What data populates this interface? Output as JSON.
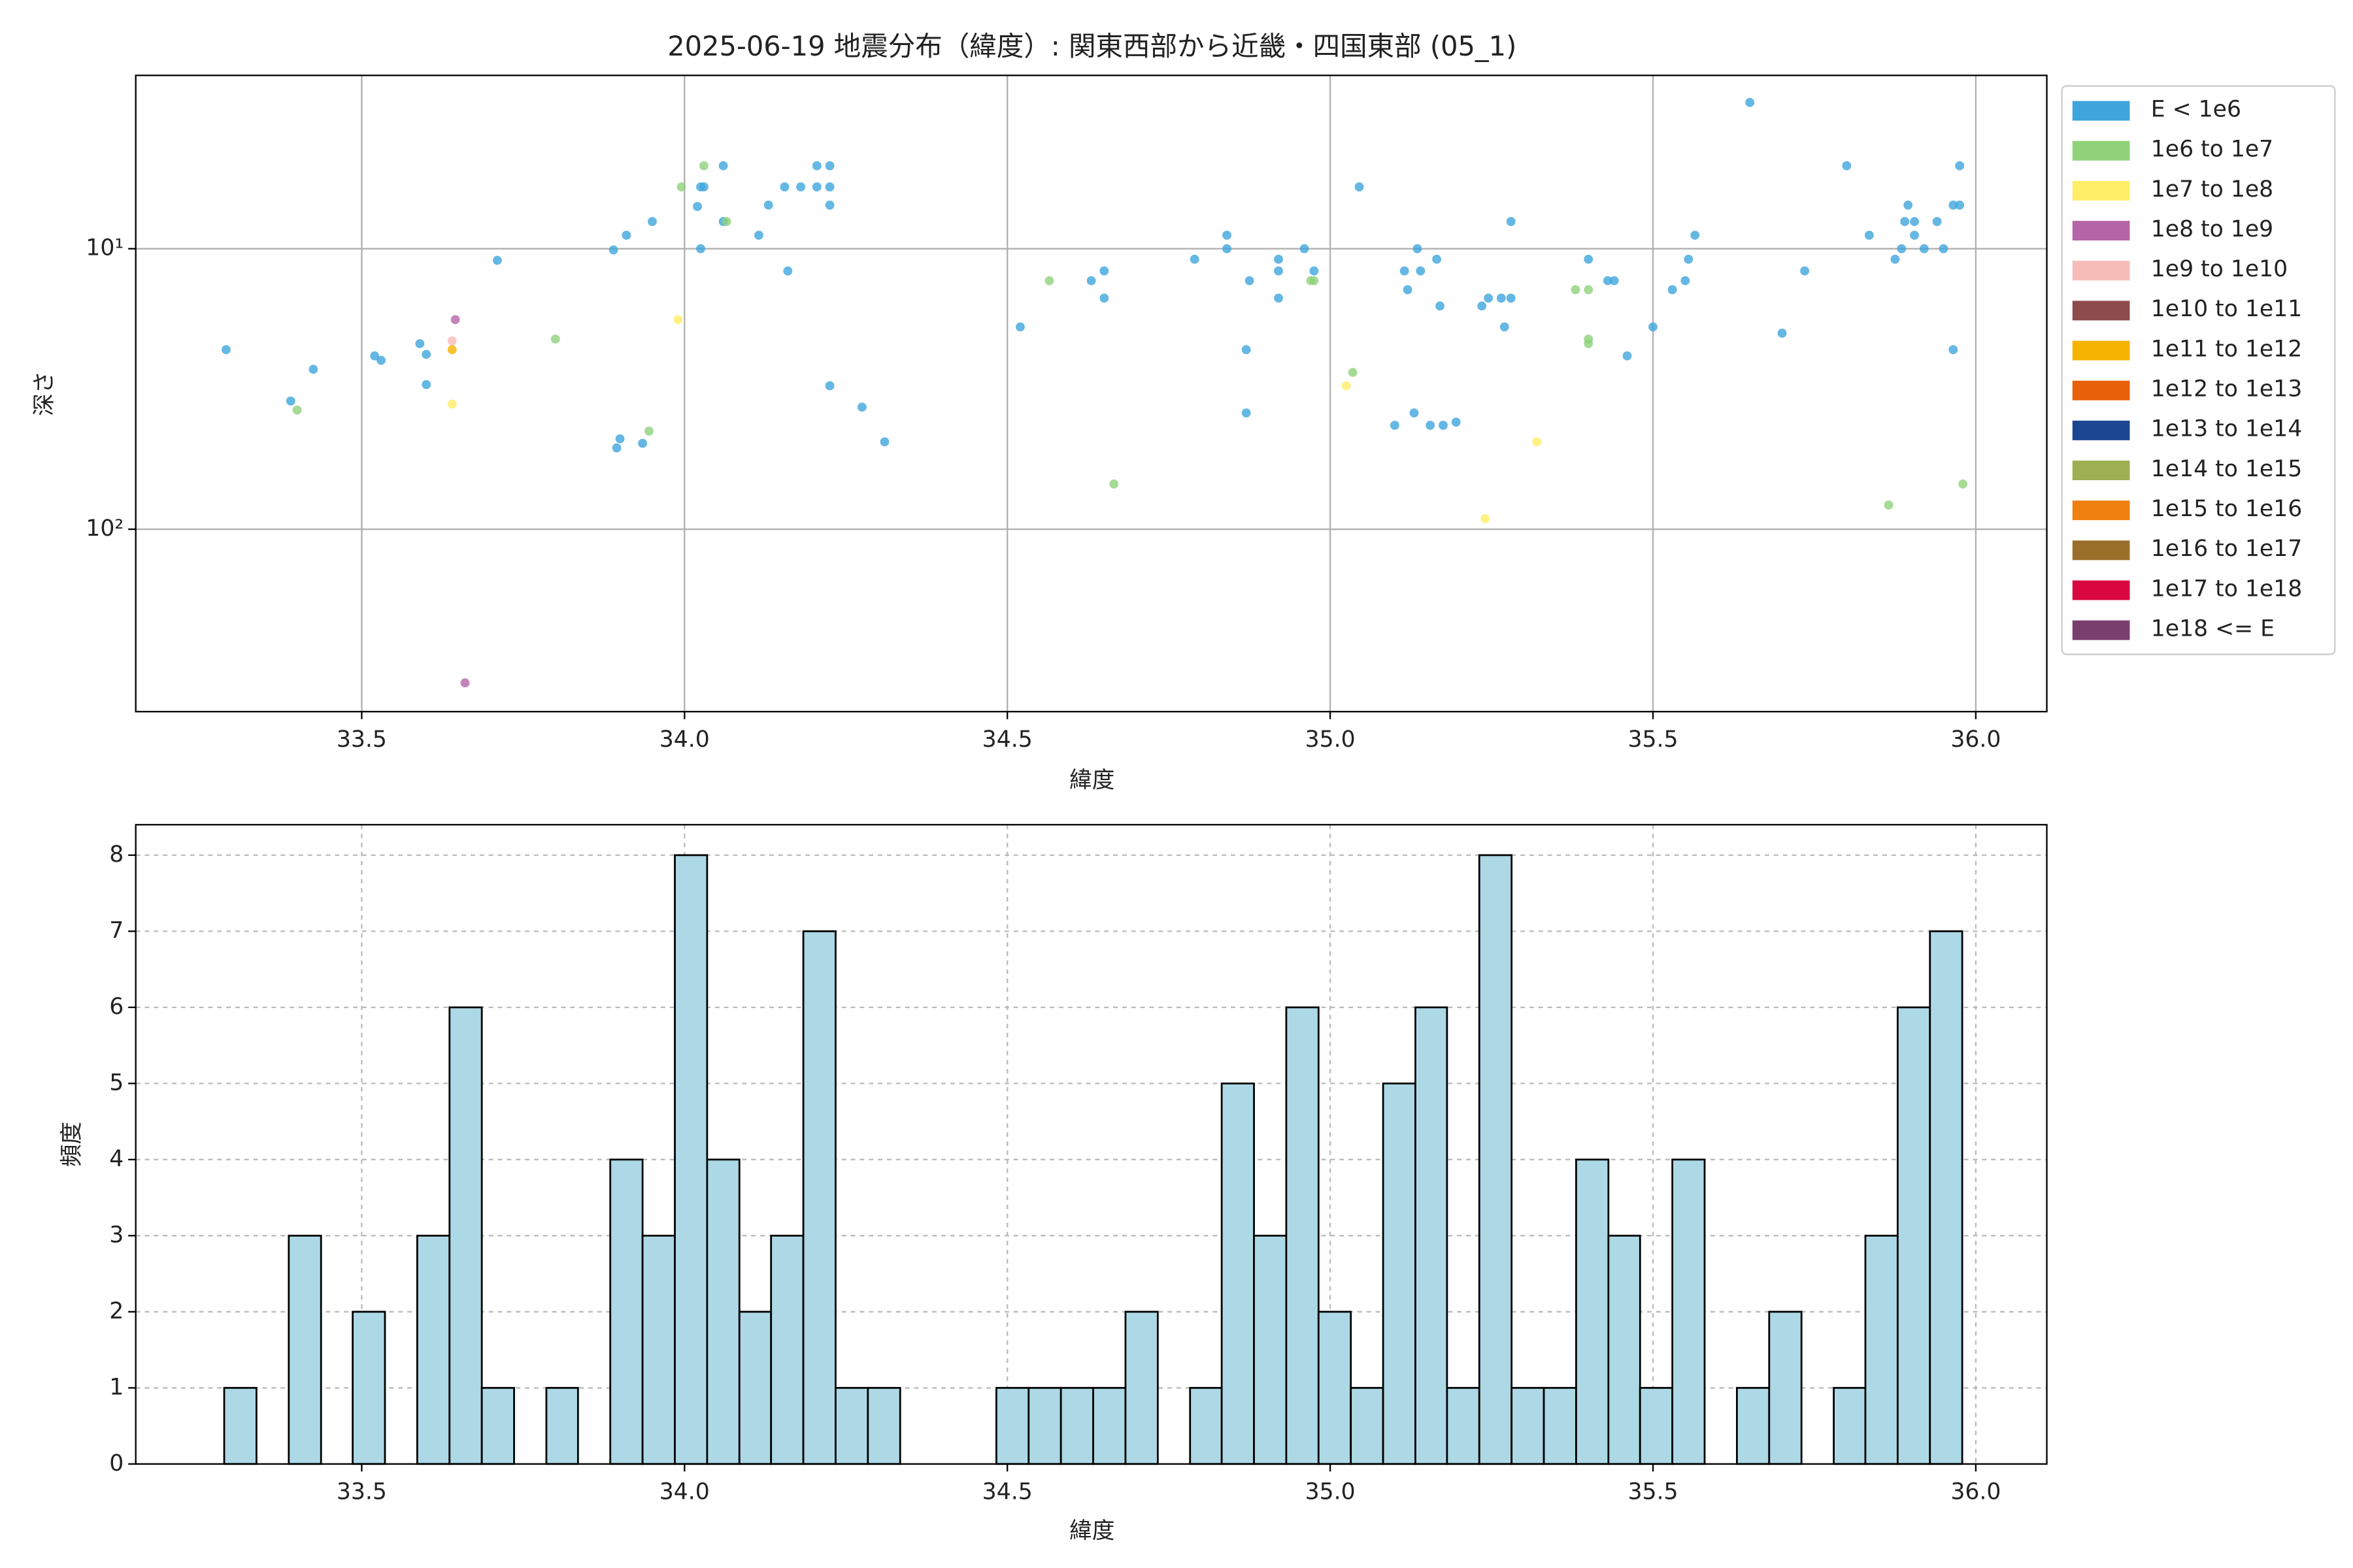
{
  "chart_data": [
    {
      "type": "scatter",
      "title": "2025-06-19 地震分布（緯度）: 関東西部から近畿・四国東部 (05_1)",
      "x_label": "緯度",
      "y_label": "深さ",
      "log_y": true,
      "invert_y": true,
      "grid": true,
      "legend": "outside right",
      "xlim": [
        33.15,
        36.11
      ],
      "xticks": [
        33.5,
        {
          "value": 34,
          "label": "34.0"
        },
        34.5,
        {
          "value": 35,
          "label": "35.0"
        },
        35.5,
        {
          "value": 36,
          "label": "36.0"
        }
      ],
      "ylim": [
        2.41,
        447
      ],
      "yticks": [
        {
          "value": 10,
          "label": "10¹"
        },
        {
          "value": 100,
          "label": "10²"
        }
      ],
      "series": [
        {
          "name": "E < 1e6",
          "color": "#3fa5dd",
          "x": [
            33.29,
            33.39,
            33.425,
            33.52,
            33.53,
            33.59,
            33.6,
            33.6,
            33.71,
            33.89,
            33.91,
            33.95,
            33.895,
            33.9,
            33.935,
            34.025,
            34.02,
            34.025,
            34.03,
            34.06,
            34.06,
            34.115,
            34.13,
            34.155,
            34.18,
            34.205,
            34.205,
            34.225,
            34.225,
            34.225,
            34.16,
            34.225,
            34.275,
            34.31,
            34.52,
            34.63,
            34.65,
            34.65,
            34.79,
            34.84,
            34.84,
            34.875,
            34.87,
            34.87,
            34.92,
            34.92,
            34.92,
            34.96,
            34.975,
            35.045,
            35.1,
            35.115,
            35.12,
            35.13,
            35.14,
            35.135,
            35.155,
            35.165,
            35.17,
            35.175,
            35.195,
            35.235,
            35.245,
            35.265,
            35.27,
            35.28,
            35.28,
            35.4,
            35.43,
            35.44,
            35.46,
            35.5,
            35.53,
            35.55,
            35.555,
            35.565,
            35.65,
            35.7,
            35.735,
            35.8,
            35.835,
            35.875,
            35.885,
            35.89,
            35.895,
            35.905,
            35.905,
            35.92,
            35.94,
            35.95,
            35.965,
            35.975,
            35.975,
            35.965
          ],
          "y": [
            22.9,
            34.9,
            26.9,
            24.1,
            25.0,
            21.8,
            30.5,
            23.8,
            11.0,
            10.1,
            8.95,
            8.0,
            51.3,
            47.6,
            49.4,
            6.02,
            7.07,
            10,
            6.02,
            5.06,
            8.0,
            8.95,
            6.99,
            6.02,
            6.02,
            6.02,
            5.06,
            6.02,
            5.06,
            6.99,
            12.0,
            30.8,
            36.7,
            48.8,
            19.0,
            13.0,
            12.0,
            15.0,
            10.9,
            8.95,
            10,
            13.0,
            22.9,
            38.5,
            10.9,
            15.0,
            12.0,
            10,
            12.0,
            6.02,
            42.6,
            12.0,
            14.0,
            38.5,
            12.0,
            10,
            42.6,
            10.9,
            16.0,
            42.6,
            41.5,
            16.0,
            15.0,
            15.0,
            19.0,
            15.0,
            8.0,
            10.9,
            13.0,
            13.0,
            24.1,
            19.0,
            14.0,
            13.0,
            10.9,
            8.95,
            3.01,
            20.0,
            12.0,
            5.06,
            8.95,
            10.9,
            10,
            8.0,
            6.99,
            8.0,
            8.95,
            10,
            8.0,
            10,
            6.99,
            6.99,
            5.06,
            22.9
          ]
        },
        {
          "name": "1e6 to 1e7",
          "color": "#8fd27a",
          "x": [
            33.4,
            33.8,
            33.995,
            34.03,
            34.065,
            34.565,
            34.665,
            34.97,
            34.975,
            35.035,
            35.38,
            35.4,
            35.4,
            35.4,
            35.865,
            35.98,
            33.945
          ],
          "y": [
            37.6,
            21.0,
            6.02,
            5.06,
            8.0,
            13.0,
            69.0,
            13.0,
            13.0,
            27.6,
            14.0,
            14.0,
            21.8,
            21.0,
            82.0,
            69.0,
            44.7
          ]
        },
        {
          "name": "1e7 to 1e8",
          "color": "#ffee66",
          "x": [
            33.99,
            33.64,
            35.025,
            35.24,
            35.32
          ],
          "y": [
            17.9,
            35.8,
            30.8,
            91.7,
            48.8
          ]
        },
        {
          "name": "1e8 to 1e9",
          "color": "#b565a7",
          "x": [
            33.645,
            33.66
          ],
          "y": [
            17.9,
            353
          ]
        },
        {
          "name": "1e9 to 1e10",
          "color": "#f5bcb8",
          "x": [
            33.64
          ],
          "y": [
            21.3
          ]
        },
        {
          "name": "1e10 to 1e11",
          "color": "#8e4b4b",
          "x": [],
          "y": []
        },
        {
          "name": "1e11 to 1e12",
          "color": "#f6b400",
          "x": [
            33.64
          ],
          "y": [
            22.9
          ]
        },
        {
          "name": "1e12 to 1e13",
          "color": "#e8600a",
          "x": [],
          "y": []
        },
        {
          "name": "1e13 to 1e14",
          "color": "#1c4692",
          "x": [],
          "y": []
        },
        {
          "name": "1e14 to 1e15",
          "color": "#9caf52",
          "x": [],
          "y": []
        },
        {
          "name": "1e15 to 1e16",
          "color": "#f08010",
          "x": [],
          "y": []
        },
        {
          "name": "1e16 to 1e17",
          "color": "#9a6f2a",
          "x": [],
          "y": []
        },
        {
          "name": "1e17 to 1e18",
          "color": "#d9073f",
          "x": [],
          "y": []
        },
        {
          "name": "1e18 <= E",
          "color": "#7a3e6e",
          "x": [],
          "y": []
        }
      ]
    },
    {
      "type": "histogram",
      "x_label": "緯度",
      "y_label": "頻度",
      "grid": true,
      "color": "#add8e6",
      "xlim": [
        33.15,
        36.11
      ],
      "xticks": [
        33.5,
        {
          "value": 34,
          "label": "34.0"
        },
        34.5,
        {
          "value": 35,
          "label": "35.0"
        },
        35.5,
        {
          "value": 36,
          "label": "36.0"
        }
      ],
      "ylim": [
        0,
        8.4
      ],
      "yticks": [
        0,
        1,
        2,
        3,
        4,
        5,
        6,
        7,
        8
      ],
      "bins": [
        33.287,
        33.337,
        33.387,
        33.437,
        33.486,
        33.536,
        33.586,
        33.636,
        33.686,
        33.736,
        33.786,
        33.835,
        33.885,
        33.935,
        33.985,
        34.035,
        34.085,
        34.134,
        34.184,
        34.234,
        34.284,
        34.334,
        34.384,
        34.434,
        34.483,
        34.533,
        34.583,
        34.633,
        34.683,
        34.733,
        34.783,
        34.832,
        34.882,
        34.932,
        34.982,
        35.032,
        35.082,
        35.132,
        35.181,
        35.231,
        35.281,
        35.331,
        35.381,
        35.431,
        35.48,
        35.53,
        35.58,
        35.63,
        35.68,
        35.73,
        35.78,
        35.829,
        35.879,
        35.929,
        35.979
      ],
      "counts": [
        1,
        0,
        3,
        0,
        2,
        0,
        3,
        6,
        1,
        0,
        1,
        0,
        4,
        3,
        8,
        4,
        2,
        3,
        7,
        1,
        1,
        0,
        0,
        0,
        1,
        1,
        1,
        1,
        2,
        0,
        1,
        5,
        3,
        6,
        2,
        1,
        5,
        6,
        1,
        8,
        1,
        1,
        4,
        3,
        1,
        4,
        0,
        1,
        2,
        0,
        1,
        3,
        6,
        7
      ]
    }
  ]
}
